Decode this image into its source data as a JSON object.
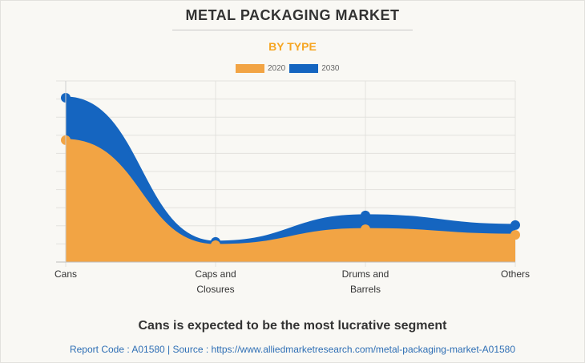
{
  "title": "METAL PACKAGING MARKET",
  "subtitle": "BY TYPE",
  "caption": "Cans is expected to be the most lucrative segment",
  "source_line": "Report Code : A01580  |  Source : https://www.alliedmarketresearch.com/metal-packaging-market-A01580",
  "colors": {
    "2020": "#f2a444",
    "2030": "#1565c0",
    "title": "#333333",
    "subtitle": "#f6a623",
    "source": "#2f6fb5"
  },
  "chart_data": {
    "type": "area",
    "title": "METAL PACKAGING MARKET",
    "subtitle": "BY TYPE",
    "xlabel": "",
    "ylabel": "",
    "categories": [
      "Cans",
      "Caps and Closures",
      "Drums and Barrels",
      "Others"
    ],
    "category_lines": [
      [
        "Cans"
      ],
      [
        "Caps and",
        "Closures"
      ],
      [
        "Drums and",
        "Barrels"
      ],
      [
        "Others"
      ]
    ],
    "series": [
      {
        "name": "2030",
        "values": [
          90.7,
          11.1,
          25.7,
          20.4
        ]
      },
      {
        "name": "2020",
        "values": [
          67.3,
          9.3,
          18.1,
          15.0
        ]
      }
    ],
    "legend": [
      "2020",
      "2030"
    ],
    "legend_position": "top-center",
    "ylim": [
      0,
      100
    ],
    "y_gridlines": 10,
    "y_tick_labels_visible": false,
    "grid": true
  }
}
